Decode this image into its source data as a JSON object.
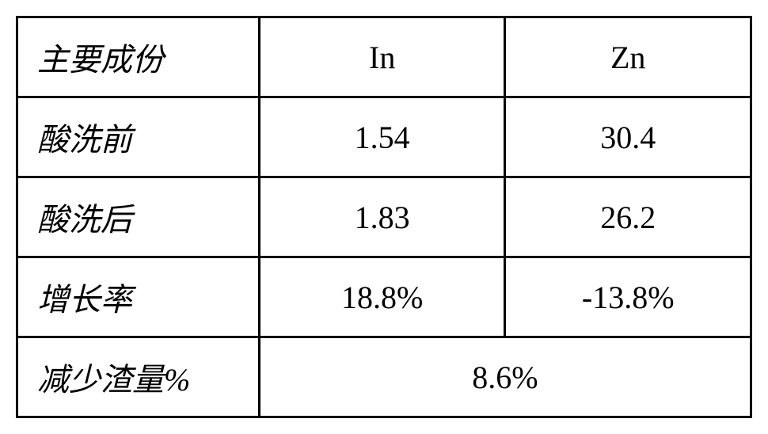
{
  "table": {
    "border_color": "#000000",
    "background_color": "#ffffff",
    "text_color": "#000000",
    "font_size": 40,
    "border_width": 3,
    "columns": [
      {
        "width_pct": 33,
        "align": "left"
      },
      {
        "width_pct": 33.5,
        "align": "center"
      },
      {
        "width_pct": 33.5,
        "align": "center"
      }
    ],
    "header": {
      "label": "主要成份",
      "col1": "In",
      "col2": "Zn"
    },
    "rows": [
      {
        "label": "酸洗前",
        "values": [
          "1.54",
          "30.4"
        ]
      },
      {
        "label": "酸洗后",
        "values": [
          "1.83",
          "26.2"
        ]
      },
      {
        "label": "增长率",
        "values": [
          "18.8%",
          "-13.8%"
        ]
      }
    ],
    "footer": {
      "label": "减少渣量%",
      "merged_value": "8.6%"
    }
  }
}
